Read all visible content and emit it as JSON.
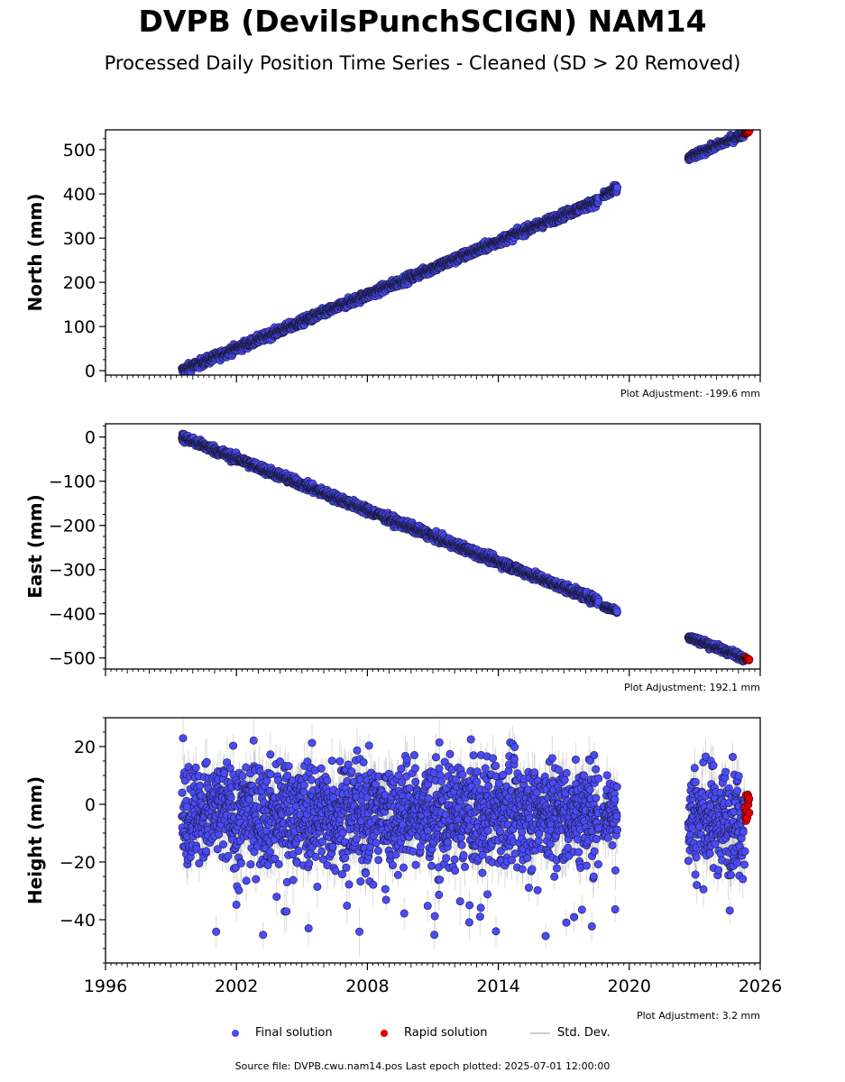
{
  "page": {
    "title": "DVPB (DevilsPunchSCIGN) NAM14",
    "subtitle": "Processed Daily Position Time Series - Cleaned (SD > 20 Removed)",
    "footer": "Source file: DVPB.cwu.nam14.pos  Last epoch plotted: 2025-07-01 12:00:00"
  },
  "legend": [
    {
      "label": "Final solution",
      "kind": "dot",
      "color": "#4b4bf5"
    },
    {
      "label": "Rapid solution",
      "kind": "dot",
      "color": "#e00000"
    },
    {
      "label": "Std. Dev.",
      "kind": "line",
      "color": "#cccccc"
    }
  ],
  "chart_data": [
    {
      "type": "scatter",
      "ylabel": "North (mm)",
      "adjustment": "Plot Adjustment: -199.6 mm",
      "xlim": [
        1996,
        2026
      ],
      "ylim": [
        -10,
        545
      ],
      "yticks": [
        0,
        100,
        200,
        300,
        400,
        500
      ],
      "ytick_labels": [
        "0",
        "100",
        "200",
        "300",
        "400",
        "500"
      ],
      "series": [
        {
          "segments": [
            {
              "x0": 1999.5,
              "x1": 2018.6,
              "y0": 0,
              "y1": 385,
              "scatter": 5,
              "std": 0
            },
            {
              "x0": 2018.8,
              "x1": 2019.45,
              "y0": 395,
              "y1": 412,
              "scatter": 5,
              "std": 0
            },
            {
              "x0": 2022.7,
              "x1": 2025.3,
              "y0": 481,
              "y1": 537,
              "scatter": 4,
              "std": 0
            }
          ]
        },
        {
          "rapid": true,
          "segments": [
            {
              "x0": 2025.3,
              "x1": 2025.5,
              "y0": 537,
              "y1": 542,
              "scatter": 1,
              "std": 0
            }
          ]
        }
      ]
    },
    {
      "type": "scatter",
      "ylabel": "East (mm)",
      "adjustment": "Plot Adjustment: 192.1 mm",
      "xlim": [
        1996,
        2026
      ],
      "ylim": [
        -525,
        30
      ],
      "yticks": [
        -500,
        -400,
        -300,
        -200,
        -100,
        0
      ],
      "ytick_labels": [
        "−500",
        "−400",
        "−300",
        "−200",
        "−100",
        "0"
      ],
      "series": [
        {
          "segments": [
            {
              "x0": 1999.5,
              "x1": 2018.6,
              "y0": 0,
              "y1": -372,
              "scatter": 5,
              "std": 0
            },
            {
              "x0": 2018.8,
              "x1": 2019.45,
              "y0": -383,
              "y1": -393,
              "scatter": 3,
              "std": 0
            },
            {
              "x0": 2022.7,
              "x1": 2025.3,
              "y0": -452,
              "y1": -500,
              "scatter": 4,
              "std": 0
            }
          ]
        },
        {
          "rapid": true,
          "segments": [
            {
              "x0": 2025.3,
              "x1": 2025.5,
              "y0": -500,
              "y1": -504,
              "scatter": 1,
              "std": 0
            }
          ]
        }
      ]
    },
    {
      "type": "scatter",
      "ylabel": "Height (mm)",
      "adjustment": "Plot Adjustment: 3.2 mm",
      "xlim": [
        1996,
        2026
      ],
      "ylim": [
        -55,
        30
      ],
      "yticks": [
        -40,
        -20,
        0,
        20
      ],
      "ytick_labels": [
        "−40",
        "−20",
        "0",
        "20"
      ],
      "xticks": [
        1996,
        2002,
        2008,
        2014,
        2020,
        2026
      ],
      "xtick_labels": [
        "1996",
        "2002",
        "2008",
        "2014",
        "2020",
        "2026"
      ],
      "series": [
        {
          "segments": [
            {
              "x0": 1999.5,
              "x1": 2018.6,
              "y0": -3,
              "y1": -3,
              "scatter": 9,
              "std": 6
            },
            {
              "x0": 2018.8,
              "x1": 2019.45,
              "y0": -2,
              "y1": -2,
              "scatter": 7,
              "std": 6
            },
            {
              "x0": 2022.7,
              "x1": 2025.3,
              "y0": -5,
              "y1": -5,
              "scatter": 9,
              "std": 6
            }
          ]
        },
        {
          "rapid": true,
          "segments": [
            {
              "x0": 2025.3,
              "x1": 2025.5,
              "y0": -1,
              "y1": -1,
              "scatter": 3,
              "std": 0
            }
          ]
        }
      ]
    }
  ]
}
